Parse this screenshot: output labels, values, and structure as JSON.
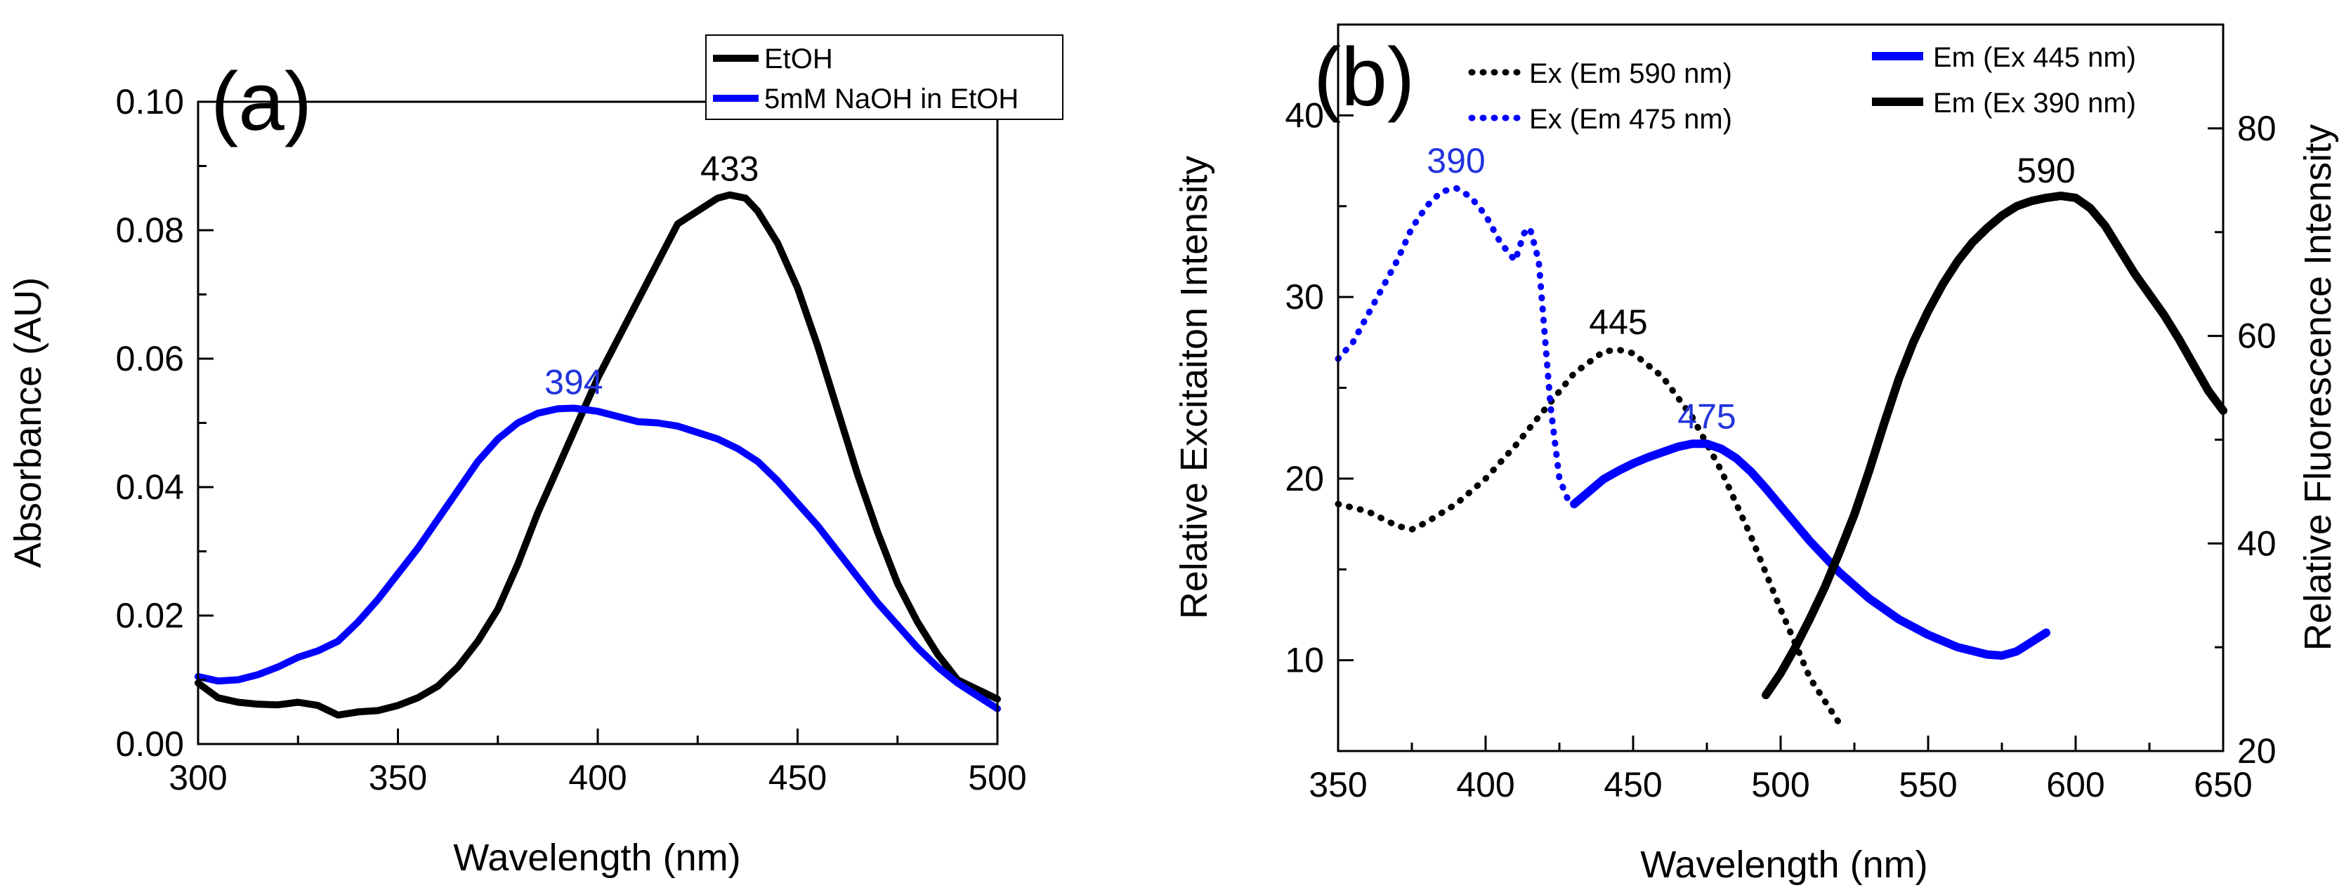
{
  "chart_data": [
    {
      "panel": "(a)",
      "type": "line",
      "xlabel": "Wavelength (nm)",
      "ylabel": "Absorbance (AU)",
      "xlim": [
        300,
        500
      ],
      "ylim": [
        0.0,
        0.1
      ],
      "xticks": [
        300,
        350,
        400,
        450,
        500
      ],
      "yticks": [
        "0.00",
        "0.02",
        "0.04",
        "0.06",
        "0.08",
        "0.10"
      ],
      "grid": false,
      "legend_placement": "top-right",
      "series": [
        {
          "name": "EtOH",
          "color": "#000000",
          "style": "solid",
          "points": [
            [
              300,
              0.0095
            ],
            [
              305,
              0.0072
            ],
            [
              310,
              0.0065
            ],
            [
              315,
              0.0062
            ],
            [
              320,
              0.0061
            ],
            [
              325,
              0.0065
            ],
            [
              330,
              0.006
            ],
            [
              335,
              0.0045
            ],
            [
              340,
              0.005
            ],
            [
              345,
              0.0052
            ],
            [
              350,
              0.006
            ],
            [
              355,
              0.0072
            ],
            [
              360,
              0.009
            ],
            [
              365,
              0.012
            ],
            [
              370,
              0.016
            ],
            [
              375,
              0.021
            ],
            [
              380,
              0.028
            ],
            [
              385,
              0.036
            ],
            [
              390,
              0.043
            ],
            [
              395,
              0.05
            ],
            [
              400,
              0.057
            ],
            [
              405,
              0.063
            ],
            [
              410,
              0.069
            ],
            [
              415,
              0.075
            ],
            [
              420,
              0.081
            ],
            [
              425,
              0.083
            ],
            [
              430,
              0.085
            ],
            [
              433,
              0.0855
            ],
            [
              437,
              0.085
            ],
            [
              440,
              0.083
            ],
            [
              445,
              0.078
            ],
            [
              450,
              0.071
            ],
            [
              455,
              0.062
            ],
            [
              460,
              0.052
            ],
            [
              465,
              0.042
            ],
            [
              470,
              0.033
            ],
            [
              475,
              0.025
            ],
            [
              480,
              0.019
            ],
            [
              485,
              0.014
            ],
            [
              490,
              0.01
            ],
            [
              495,
              0.0085
            ],
            [
              500,
              0.007
            ]
          ]
        },
        {
          "name": "5mM NaOH in EtOH",
          "color": "#0000ff",
          "style": "solid",
          "points": [
            [
              300,
              0.0105
            ],
            [
              305,
              0.0098
            ],
            [
              310,
              0.01
            ],
            [
              315,
              0.0108
            ],
            [
              320,
              0.012
            ],
            [
              325,
              0.0135
            ],
            [
              330,
              0.0145
            ],
            [
              335,
              0.016
            ],
            [
              340,
              0.019
            ],
            [
              345,
              0.0225
            ],
            [
              350,
              0.0265
            ],
            [
              355,
              0.0305
            ],
            [
              360,
              0.035
            ],
            [
              365,
              0.0395
            ],
            [
              370,
              0.044
            ],
            [
              375,
              0.0475
            ],
            [
              380,
              0.05
            ],
            [
              385,
              0.0515
            ],
            [
              390,
              0.0522
            ],
            [
              394,
              0.0523
            ],
            [
              400,
              0.0518
            ],
            [
              405,
              0.051
            ],
            [
              410,
              0.0502
            ],
            [
              415,
              0.05
            ],
            [
              420,
              0.0495
            ],
            [
              425,
              0.0485
            ],
            [
              430,
              0.0475
            ],
            [
              435,
              0.046
            ],
            [
              440,
              0.044
            ],
            [
              445,
              0.041
            ],
            [
              450,
              0.0375
            ],
            [
              455,
              0.034
            ],
            [
              460,
              0.03
            ],
            [
              465,
              0.026
            ],
            [
              470,
              0.022
            ],
            [
              475,
              0.0185
            ],
            [
              480,
              0.015
            ],
            [
              485,
              0.012
            ],
            [
              490,
              0.0095
            ],
            [
              495,
              0.0075
            ],
            [
              500,
              0.0055
            ]
          ]
        }
      ],
      "annotations": [
        {
          "text": "433",
          "x": 433,
          "y": 0.0855,
          "color": "#000000"
        },
        {
          "text": "394",
          "x": 394,
          "y": 0.0523,
          "color": "#2233dd"
        }
      ]
    },
    {
      "panel": "(b)",
      "type": "line",
      "xlabel": "Wavelength (nm)",
      "ylabel_left": "Relative Excitaiton Intensity",
      "ylabel_right": "Relative Fluorescence Intensity",
      "xlim": [
        350,
        650
      ],
      "ylim_left": [
        5,
        45
      ],
      "ylim_right": [
        20,
        90
      ],
      "xticks": [
        350,
        400,
        450,
        500,
        550,
        600,
        650
      ],
      "yticks_left": [
        "10",
        "20",
        "30",
        "40"
      ],
      "yticks_right": [
        "20",
        "40",
        "60",
        "80"
      ],
      "grid": false,
      "legend_placement": "top",
      "series": [
        {
          "name": "Ex (Em 590 nm)",
          "color": "#000000",
          "style": "dotted",
          "axis": "left",
          "points": [
            [
              350,
              18.6
            ],
            [
              360,
              18.2
            ],
            [
              370,
              17.4
            ],
            [
              375,
              17.2
            ],
            [
              380,
              17.6
            ],
            [
              390,
              18.6
            ],
            [
              400,
              20.0
            ],
            [
              410,
              21.8
            ],
            [
              420,
              23.8
            ],
            [
              430,
              25.8
            ],
            [
              440,
              27.0
            ],
            [
              445,
              27.1
            ],
            [
              450,
              26.9
            ],
            [
              460,
              25.6
            ],
            [
              470,
              23.4
            ],
            [
              480,
              20.4
            ],
            [
              490,
              16.8
            ],
            [
              500,
              12.8
            ],
            [
              510,
              9.0
            ],
            [
              520,
              6.5
            ]
          ]
        },
        {
          "name": "Ex (Em 475 nm)",
          "color": "#0000ff",
          "style": "dotted",
          "axis": "left",
          "points": [
            [
              350,
              26.6
            ],
            [
              355,
              27.5
            ],
            [
              360,
              29.0
            ],
            [
              365,
              30.5
            ],
            [
              370,
              32.0
            ],
            [
              375,
              33.8
            ],
            [
              380,
              35.0
            ],
            [
              385,
              35.8
            ],
            [
              390,
              36.0
            ],
            [
              395,
              35.5
            ],
            [
              400,
              34.5
            ],
            [
              405,
              33.0
            ],
            [
              410,
              32.0
            ],
            [
              413,
              33.5
            ],
            [
              415,
              33.8
            ],
            [
              418,
              32.0
            ],
            [
              420,
              28.0
            ],
            [
              422,
              24.0
            ],
            [
              425,
              20.0
            ],
            [
              428,
              18.8
            ],
            [
              430,
              18.6
            ]
          ]
        },
        {
          "name": "Em (Ex 445 nm)",
          "color": "#0000ff",
          "style": "solid",
          "axis": "right",
          "points": [
            [
              430,
              43.8
            ],
            [
              435,
              45.0
            ],
            [
              440,
              46.2
            ],
            [
              445,
              47.0
            ],
            [
              450,
              47.7
            ],
            [
              455,
              48.3
            ],
            [
              460,
              48.8
            ],
            [
              465,
              49.3
            ],
            [
              470,
              49.6
            ],
            [
              475,
              49.6
            ],
            [
              480,
              49.1
            ],
            [
              485,
              48.2
            ],
            [
              490,
              46.9
            ],
            [
              495,
              45.3
            ],
            [
              500,
              43.6
            ],
            [
              510,
              40.2
            ],
            [
              520,
              37.2
            ],
            [
              530,
              34.7
            ],
            [
              540,
              32.7
            ],
            [
              550,
              31.2
            ],
            [
              560,
              30.0
            ],
            [
              570,
              29.3
            ],
            [
              575,
              29.2
            ],
            [
              580,
              29.6
            ],
            [
              585,
              30.5
            ],
            [
              590,
              31.4
            ]
          ]
        },
        {
          "name": "Em (Ex 390 nm)",
          "color": "#000000",
          "style": "solid",
          "axis": "right",
          "points": [
            [
              495,
              25.4
            ],
            [
              500,
              27.5
            ],
            [
              505,
              30.0
            ],
            [
              510,
              32.8
            ],
            [
              515,
              35.8
            ],
            [
              520,
              39.2
            ],
            [
              525,
              42.8
            ],
            [
              530,
              47.0
            ],
            [
              535,
              51.5
            ],
            [
              540,
              55.8
            ],
            [
              545,
              59.4
            ],
            [
              550,
              62.4
            ],
            [
              555,
              65.0
            ],
            [
              560,
              67.2
            ],
            [
              565,
              69.0
            ],
            [
              570,
              70.4
            ],
            [
              575,
              71.6
            ],
            [
              580,
              72.5
            ],
            [
              585,
              73.0
            ],
            [
              590,
              73.3
            ],
            [
              595,
              73.5
            ],
            [
              600,
              73.3
            ],
            [
              605,
              72.3
            ],
            [
              610,
              70.6
            ],
            [
              615,
              68.3
            ],
            [
              620,
              66.0
            ],
            [
              625,
              64.0
            ],
            [
              630,
              62.0
            ],
            [
              635,
              59.7
            ],
            [
              640,
              57.2
            ],
            [
              645,
              54.7
            ],
            [
              650,
              52.8
            ]
          ]
        }
      ],
      "annotations": [
        {
          "text": "390",
          "x": 390,
          "y": 36.0,
          "axis": "left",
          "color": "#2233dd"
        },
        {
          "text": "445",
          "x": 445,
          "y": 27.1,
          "axis": "left",
          "color": "#000000"
        },
        {
          "text": "475",
          "x": 475,
          "y": 49.6,
          "axis": "right",
          "color": "#2233dd"
        },
        {
          "text": "590",
          "x": 590,
          "y": 73.3,
          "axis": "right",
          "color": "#000000"
        }
      ]
    }
  ]
}
